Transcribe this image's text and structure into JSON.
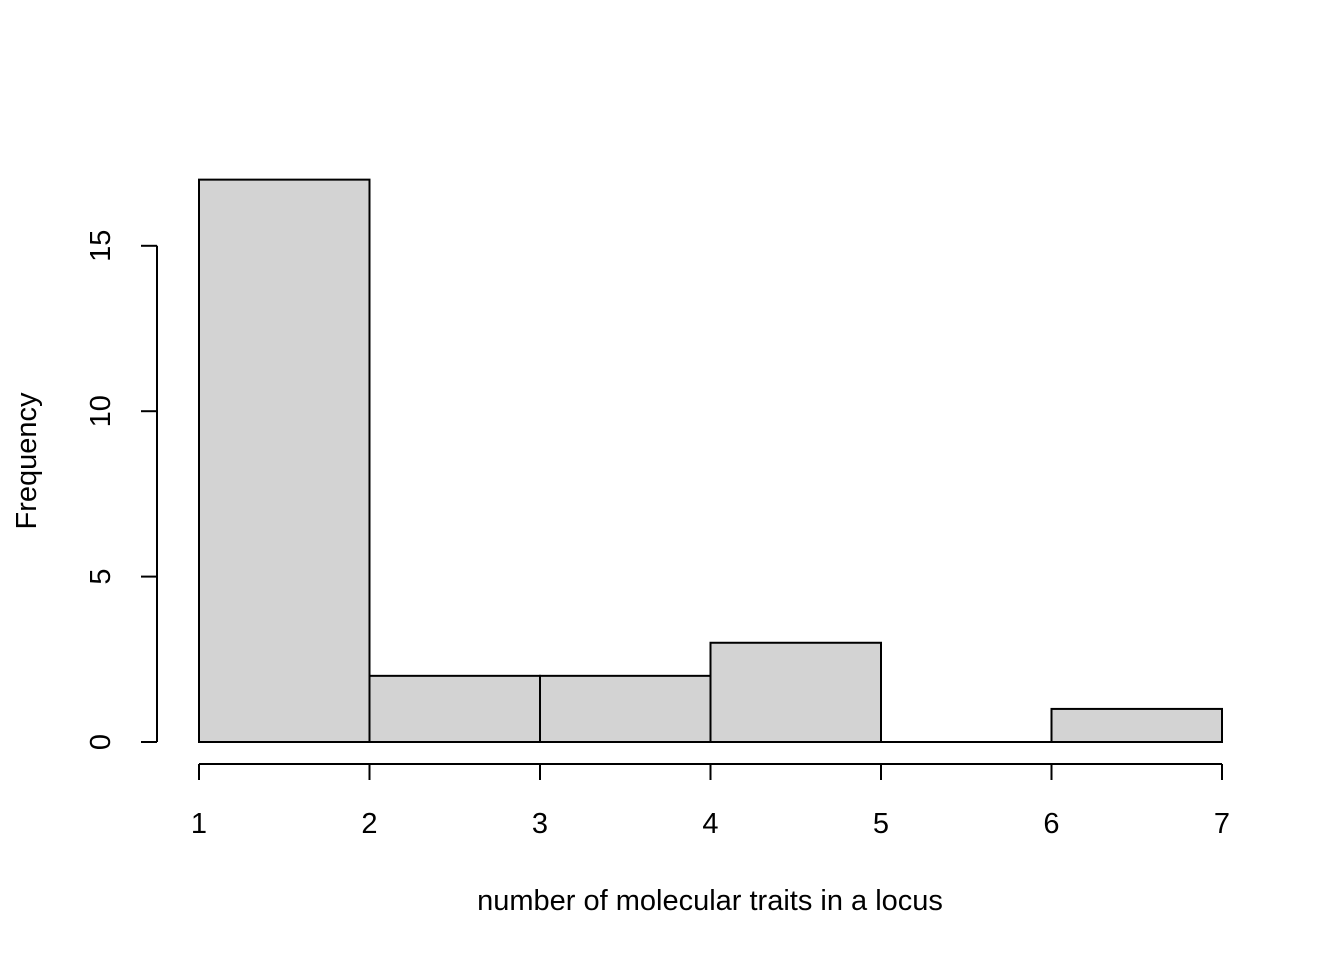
{
  "chart_data": {
    "type": "bar",
    "xlabel": "number of molecular traits in a locus",
    "ylabel": "Frequency",
    "bins": [
      {
        "start": 1,
        "end": 2,
        "count": 17
      },
      {
        "start": 2,
        "end": 3,
        "count": 2
      },
      {
        "start": 3,
        "end": 4,
        "count": 2
      },
      {
        "start": 4,
        "end": 5,
        "count": 3
      },
      {
        "start": 5,
        "end": 6,
        "count": 0
      },
      {
        "start": 6,
        "end": 7,
        "count": 1
      }
    ],
    "xlim": [
      1,
      7
    ],
    "ylim": [
      0,
      17
    ],
    "x_ticks": [
      "1",
      "2",
      "3",
      "4",
      "5",
      "6",
      "7"
    ],
    "y_ticks": [
      "0",
      "5",
      "10",
      "15"
    ],
    "grid": false,
    "bar_fill": "#d3d3d3",
    "bar_stroke": "#000000"
  }
}
